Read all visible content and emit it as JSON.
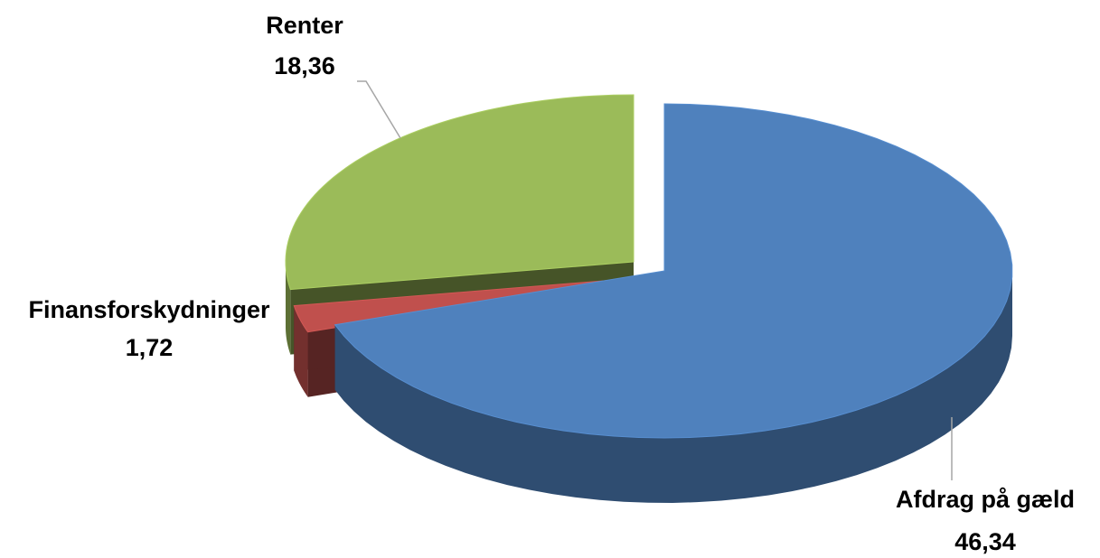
{
  "chart_data": {
    "type": "pie",
    "categories": [
      "Afdrag på gæld",
      "Finansforskydninger",
      "Renter"
    ],
    "values": [
      46.34,
      1.72,
      18.36
    ],
    "value_labels": [
      "46,34",
      "1,72",
      "18,36"
    ],
    "colors": [
      "#4f81bd",
      "#c0504d",
      "#9bbb59"
    ]
  }
}
